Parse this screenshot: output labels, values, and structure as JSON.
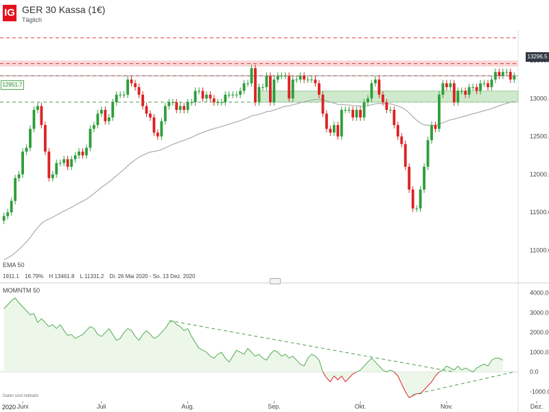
{
  "header": {
    "logo_text": "IG",
    "title": "GER 30 Kassa (1€)",
    "subtitle": "Täglich"
  },
  "price_badge": "13296.5",
  "level_badge": "12951.7",
  "ema": {
    "label": "EMA",
    "period": "50"
  },
  "info_bar": {
    "v1": "1911.1",
    "v2": "16.79%",
    "high": "H 13461.8",
    "low": "L 11331.2",
    "range": "Di. 26 Mai 2020 - So. 13 Dez. 2020"
  },
  "momentum": {
    "label": "MOMNTM",
    "period": "50"
  },
  "footnote": "Daten sind indikativ",
  "year_label": "2020",
  "colors": {
    "up": "#2e9e3a",
    "down": "#dd2222",
    "ema": "#aaaaaa",
    "mom_pos": "#4fa84f",
    "mom_neg": "#dd2222",
    "brand": "#e3111b"
  },
  "chart_data": [
    {
      "type": "candlestick",
      "title": "GER 30 Kassa (1€)",
      "ylim": [
        10750,
        13900
      ],
      "yticks": [
        11000,
        11500,
        12000,
        12500,
        13000,
        13500
      ],
      "ytick_labels": [
        "11000.0",
        "11500.0",
        "12000.0",
        "12500.0",
        "13000.0",
        "13500.0"
      ],
      "x_labels": [
        "Juni",
        "Juli",
        "Aug.",
        "Sep.",
        "Okt.",
        "Nov.",
        "Dez."
      ],
      "x_label_days": [
        5,
        26,
        49,
        72,
        95,
        118,
        142
      ],
      "close": [
        11450,
        11500,
        11650,
        11950,
        12000,
        12300,
        12350,
        12600,
        12850,
        12900,
        12650,
        12300,
        11950,
        12000,
        12150,
        12150,
        12200,
        12100,
        12200,
        12250,
        12300,
        12250,
        12350,
        12600,
        12650,
        12800,
        12850,
        12700,
        12750,
        12950,
        13050,
        13050,
        13050,
        13250,
        13200,
        13150,
        13050,
        12900,
        12800,
        12750,
        12550,
        12500,
        12700,
        12900,
        12950,
        12950,
        12850,
        12900,
        12850,
        12950,
        12950,
        13100,
        13100,
        13000,
        13050,
        13000,
        12950,
        12950,
        12950,
        13050,
        13050,
        13050,
        13050,
        13100,
        13200,
        13200,
        13400,
        12950,
        13150,
        13150,
        13300,
        12950,
        13250,
        13300,
        13300,
        13300,
        13000,
        13250,
        13250,
        13300,
        13250,
        13250,
        13250,
        13200,
        13050,
        12800,
        12600,
        12550,
        12650,
        12500,
        12850,
        12850,
        12850,
        12750,
        12850,
        12750,
        12950,
        13000,
        13200,
        13250,
        13050,
        12950,
        12850,
        12850,
        12650,
        12500,
        12400,
        12100,
        11800,
        11550,
        11550,
        11800,
        12100,
        12450,
        12650,
        12600,
        13050,
        13200,
        13150,
        13200,
        12950,
        13100,
        13100,
        13050,
        13150,
        13150,
        13100,
        13200,
        13200,
        13150,
        13250,
        13350,
        13300,
        13350,
        13350,
        13250,
        13300
      ],
      "prev_close_level": 13296.5,
      "resistance_levels": [
        13460,
        13300,
        12951.7
      ],
      "upper_line": 13800,
      "resistance_band": [
        13420,
        13500
      ],
      "support_zone": [
        12951.7,
        13100
      ],
      "ema_period": 50
    },
    {
      "type": "line",
      "title": "MOMNTM 50",
      "ylim": [
        -1400,
        4300
      ],
      "yticks": [
        -1000,
        0,
        1000,
        2000,
        3000,
        4000
      ],
      "ytick_labels": [
        "-1000.0",
        "0.0",
        "1000.0",
        "2000.0",
        "3000.0",
        "4000.0"
      ],
      "values": [
        3200,
        3400,
        3600,
        3750,
        3500,
        3300,
        3100,
        2900,
        2950,
        2500,
        2700,
        2500,
        2300,
        2400,
        2200,
        2400,
        2100,
        1850,
        1900,
        1700,
        1800,
        1900,
        2100,
        2300,
        2200,
        1900,
        1800,
        2000,
        2200,
        1900,
        1600,
        1700,
        2000,
        2200,
        2100,
        1800,
        1600,
        1900,
        2100,
        1900,
        1700,
        1800,
        2000,
        2200,
        2500,
        2600,
        2400,
        2300,
        2100,
        2200,
        1800,
        1500,
        1200,
        1100,
        1000,
        800,
        700,
        900,
        1000,
        700,
        500,
        800,
        1100,
        1000,
        900,
        1200,
        1000,
        800,
        900,
        700,
        600,
        900,
        1100,
        1000,
        800,
        900,
        700,
        800,
        600,
        400,
        300,
        700,
        900,
        800,
        600,
        0,
        -300,
        -500,
        -200,
        -400,
        -200,
        -500,
        -300,
        -100,
        0,
        100,
        300,
        500,
        700,
        500,
        300,
        100,
        0,
        100,
        0,
        -200,
        -600,
        -1000,
        -1300,
        -1200,
        -1100,
        -1100,
        -900,
        -700,
        -500,
        -200,
        0,
        100,
        300,
        200,
        100,
        300,
        100,
        200,
        100,
        0,
        200,
        300,
        400,
        300,
        600,
        700,
        700,
        600
      ]
    }
  ]
}
